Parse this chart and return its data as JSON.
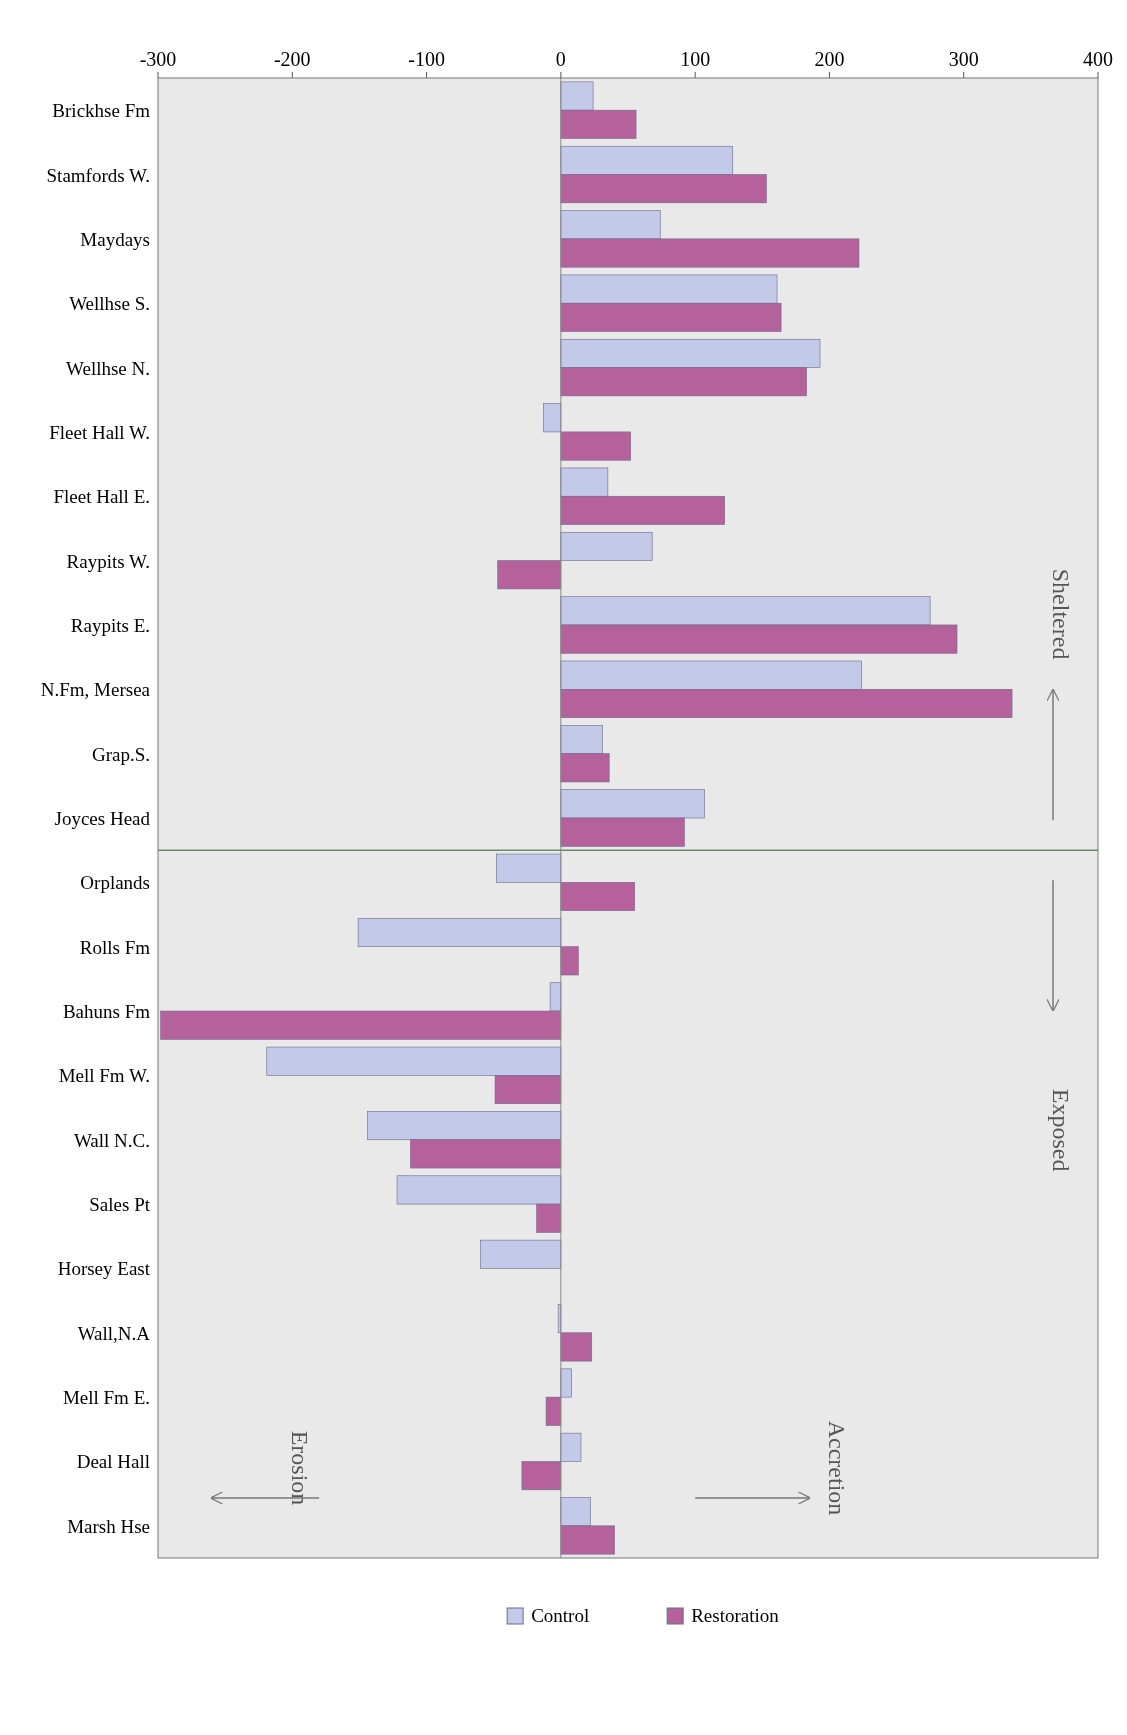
{
  "chart_data": {
    "type": "bar",
    "orientation": "horizontal",
    "categories": [
      "Brickhse Fm",
      "Stamfords W.",
      "Maydays",
      "Wellhse S.",
      "Wellhse N.",
      "Fleet Hall W.",
      "Fleet Hall E.",
      "Raypits W.",
      "Raypits E.",
      "N.Fm, Mersea",
      "Grap.S.",
      "Joyces Head",
      "Orplands",
      "Rolls Fm",
      "Bahuns Fm",
      "Mell Fm W.",
      "Wall N.C.",
      "Sales Pt",
      "Horsey East",
      "Wall,N.A",
      "Mell Fm E.",
      "Deal Hall",
      "Marsh Hse"
    ],
    "series": [
      {
        "name": "Control",
        "color": "#c3c9e8",
        "values": [
          24,
          128,
          74,
          161,
          193,
          -13,
          35,
          68,
          275,
          224,
          31,
          107,
          -48,
          -151,
          -8,
          -219,
          -144,
          -122,
          -60,
          -2,
          8,
          15,
          22
        ]
      },
      {
        "name": "Restoration",
        "color": "#b5629c",
        "values": [
          56,
          153,
          222,
          164,
          183,
          52,
          122,
          -47,
          295,
          336,
          36,
          92,
          55,
          13,
          -298,
          -49,
          -112,
          -18,
          0,
          23,
          -11,
          -29,
          40
        ]
      }
    ],
    "xlim": [
      -300,
      400
    ],
    "xticks": [
      -300,
      -200,
      -100,
      0,
      100,
      200,
      300,
      400
    ],
    "legend": "bottom",
    "ref_lines": [
      {
        "axis": "y",
        "value": "Orplands",
        "color": "#6a8a6a"
      }
    ],
    "annotations": [
      "Sheltered",
      "Exposed",
      "Accretion",
      "Erosion"
    ]
  }
}
